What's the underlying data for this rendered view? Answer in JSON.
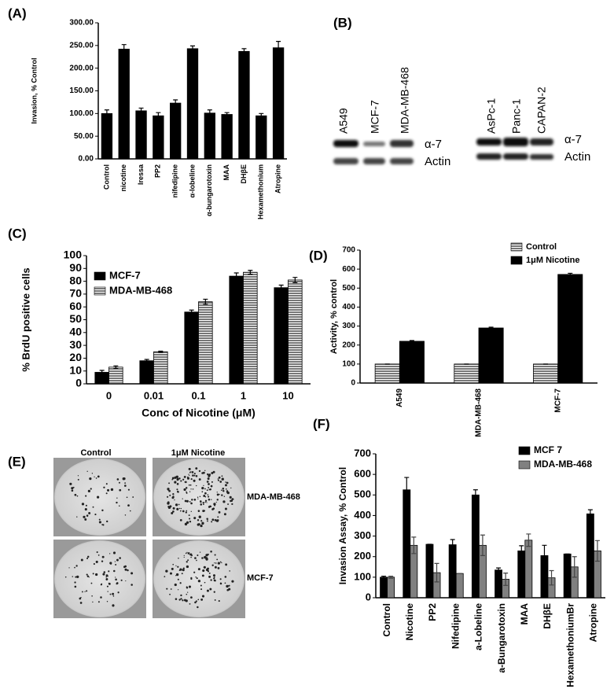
{
  "panel_labels": [
    "(A)",
    "(B)",
    "(C)",
    "(D)",
    "(E)",
    "(F)"
  ],
  "blot": {
    "lanes": [
      "A549",
      "MCF-7",
      "MDA-MB-468",
      "AsPc-1",
      "Panc-1",
      "CAPAN-2"
    ],
    "rows_left": [
      "α-7",
      "Actin"
    ],
    "rows_right": [
      "α-7",
      "Actin"
    ]
  },
  "colony": {
    "columns": [
      "Control",
      "1μM Nicotine"
    ],
    "rows": [
      "MDA-MB-468",
      "MCF-7"
    ]
  },
  "chart_data": [
    {
      "type": "bar",
      "ylabel": "Invasion, % Control",
      "categories": [
        "Control",
        "nicotine",
        "Iressa",
        "PP2",
        "nifedipine",
        "α-lobeline",
        "α-bungarotoxin",
        "MAA",
        "DHβE",
        "Hexamethonium",
        "Atropine"
      ],
      "values": [
        100,
        242,
        106,
        95,
        123,
        243,
        101,
        98,
        237,
        95,
        245
      ],
      "errors": [
        8,
        10,
        6,
        7,
        7,
        6,
        7,
        4,
        6,
        5,
        14
      ],
      "color": "#000000",
      "ylim": [
        0,
        300
      ],
      "yticks": [
        {
          "value": 0,
          "label": "0.00"
        },
        {
          "value": 50,
          "label": "50.00"
        },
        {
          "value": 100,
          "label": "100.00"
        },
        {
          "value": 150,
          "label": "150.00"
        },
        {
          "value": 200,
          "label": "200.00"
        },
        {
          "value": 250,
          "label": "250.00"
        },
        {
          "value": 300,
          "label": "300.00"
        }
      ]
    },
    {
      "type": "bar",
      "ylabel": "% BrdU positive cells",
      "xlabel": "Conc of Nicotine (μM)",
      "categories": [
        "0",
        "0.01",
        "0.1",
        "1",
        "10"
      ],
      "legend": "upper left",
      "series": [
        {
          "name": "MCF-7",
          "color": "#000000",
          "hatch": false,
          "values": [
            9,
            18,
            56,
            84,
            75
          ],
          "errors": [
            1.5,
            1,
            1.5,
            2.5,
            2
          ]
        },
        {
          "name": "MDA-MB-468",
          "color": "#888888",
          "hatch": true,
          "values": [
            13,
            25,
            64,
            87,
            81
          ],
          "errors": [
            1,
            0.5,
            2,
            1.5,
            2
          ]
        }
      ],
      "ylim": [
        0,
        100
      ],
      "yticks": [
        0,
        10,
        20,
        30,
        40,
        50,
        60,
        70,
        80,
        90,
        100
      ]
    },
    {
      "type": "bar",
      "ylabel": "Activity, % control",
      "categories": [
        "A549",
        "MDA-MB-468",
        "MCF-7"
      ],
      "legend": "upper right",
      "series": [
        {
          "name": "Control",
          "color": "#888888",
          "hatch": true,
          "values": [
            100,
            100,
            100
          ],
          "errors": [
            0,
            0,
            0
          ]
        },
        {
          "name": "1μM Nicotine",
          "color": "#000000",
          "hatch": false,
          "values": [
            220,
            290,
            572
          ],
          "errors": [
            4,
            4,
            6
          ]
        }
      ],
      "ylim": [
        0,
        700
      ],
      "yticks": [
        0,
        100,
        200,
        300,
        400,
        500,
        600,
        700
      ]
    },
    {
      "type": "bar",
      "ylabel": "Invasion Assay, % Control",
      "categories": [
        "Control",
        "Nicotine",
        "PP2",
        "Nifedipine",
        "a-Lobeline",
        "a-Bungarotoxin",
        "MAA",
        "DHβE",
        "HexamethoniumBr",
        "Atropine"
      ],
      "legend": "upper right",
      "series": [
        {
          "name": "MCF 7",
          "color": "#000000",
          "hatch": false,
          "values": [
            100,
            525,
            260,
            258,
            500,
            135,
            228,
            205,
            213,
            408
          ],
          "errors": [
            5,
            60,
            0,
            25,
            25,
            10,
            25,
            50,
            0,
            20
          ]
        },
        {
          "name": "MDA-MB-468",
          "color": "#808080",
          "hatch": false,
          "values": [
            100,
            255,
            122,
            118,
            255,
            90,
            280,
            97,
            150,
            228
          ],
          "errors": [
            5,
            40,
            45,
            0,
            50,
            30,
            30,
            35,
            50,
            50
          ]
        }
      ],
      "ylim": [
        0,
        700
      ],
      "yticks": [
        0,
        100,
        200,
        300,
        400,
        500,
        600,
        700
      ]
    }
  ]
}
